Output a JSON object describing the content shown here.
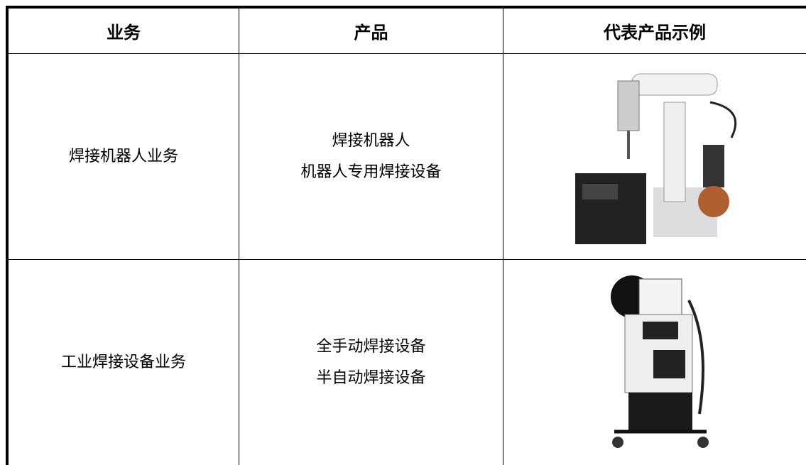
{
  "table": {
    "header": [
      "业务",
      "产品",
      "代表产品示例"
    ],
    "rows": [
      {
        "business": "焊接机器人业务",
        "products": [
          "焊接机器人",
          "机器人专用焊接设备"
        ]
      },
      {
        "business": "工业焊接设备业务",
        "products": [
          "全手动焊接设备",
          "半自动焊接设备"
        ]
      }
    ]
  }
}
